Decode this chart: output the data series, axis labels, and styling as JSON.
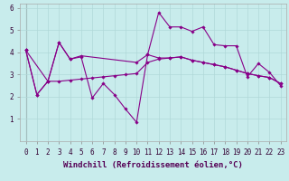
{
  "background_color": "#c8ecec",
  "grid_color": "#b0d8d8",
  "line_color": "#880088",
  "xlim": [
    -0.5,
    23.5
  ],
  "ylim": [
    0,
    6.2
  ],
  "xlabel": "Windchill (Refroidissement éolien,°C)",
  "xlabel_fontsize": 6.5,
  "xticks": [
    0,
    1,
    2,
    3,
    4,
    5,
    6,
    7,
    8,
    9,
    10,
    11,
    12,
    13,
    14,
    15,
    16,
    17,
    18,
    19,
    20,
    21,
    22,
    23
  ],
  "yticks": [
    1,
    2,
    3,
    4,
    5,
    6
  ],
  "tick_fontsize": 5.5,
  "line1_x": [
    0,
    1,
    2,
    3,
    4,
    5,
    6,
    7,
    8,
    9,
    10,
    11,
    12,
    13,
    14,
    15,
    16,
    17,
    18,
    19,
    20,
    21,
    22,
    23
  ],
  "line1_y": [
    4.1,
    2.1,
    2.7,
    4.45,
    3.7,
    3.8,
    1.95,
    2.6,
    2.1,
    1.45,
    0.85,
    3.9,
    5.8,
    5.15,
    5.15,
    4.95,
    5.15,
    4.35,
    4.3,
    4.3,
    2.9,
    3.5,
    3.1,
    2.5
  ],
  "line2_x": [
    0,
    2,
    3,
    4,
    5,
    6,
    7,
    8,
    9,
    10,
    11,
    12,
    13,
    14,
    15,
    16,
    17,
    18,
    19,
    20,
    21,
    22,
    23
  ],
  "line2_y": [
    4.1,
    2.7,
    2.7,
    2.75,
    2.8,
    2.85,
    2.9,
    2.95,
    3.0,
    3.05,
    3.55,
    3.7,
    3.75,
    3.8,
    3.65,
    3.55,
    3.45,
    3.35,
    3.2,
    3.05,
    2.95,
    2.87,
    2.6
  ],
  "line3_x": [
    0,
    1,
    2,
    3,
    4,
    5,
    10,
    11,
    12,
    13,
    14,
    15,
    16,
    17,
    18,
    19,
    20,
    21,
    22,
    23
  ],
  "line3_y": [
    4.1,
    2.1,
    2.7,
    4.45,
    3.7,
    3.85,
    3.55,
    3.9,
    3.75,
    3.75,
    3.8,
    3.65,
    3.55,
    3.45,
    3.35,
    3.2,
    3.05,
    2.95,
    2.87,
    2.6
  ]
}
